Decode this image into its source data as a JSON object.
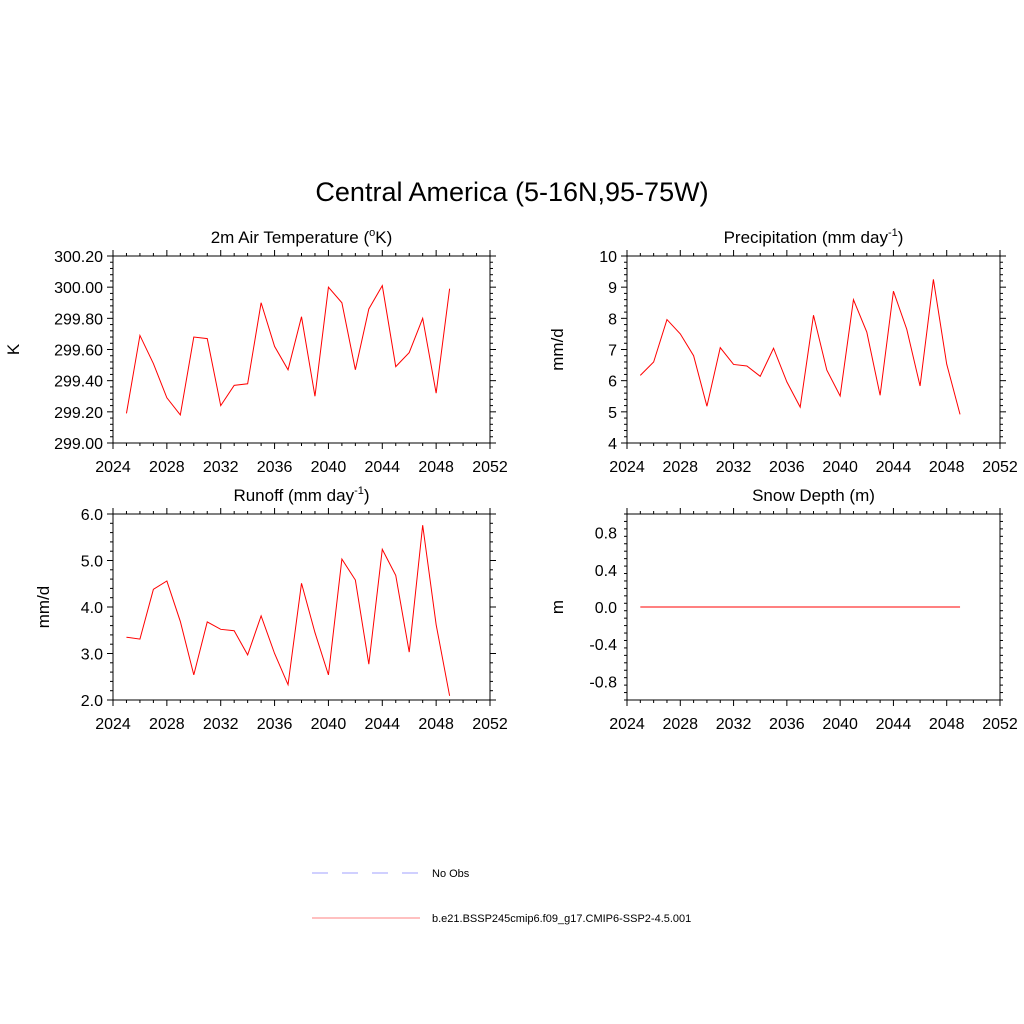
{
  "figure": {
    "title": "Central America (5-16N,95-75W)",
    "legend": [
      {
        "label": "No Obs",
        "color": "#a0a0ff",
        "style": "dashed"
      },
      {
        "label": "b.e21.BSSP245cmip6.f09_g17.CMIP6-SSP2-4.5.001",
        "color": "#ff8080",
        "style": "solid"
      }
    ]
  },
  "chart_data": [
    {
      "type": "line",
      "title": "2m Air Temperature (",
      "title_sup": "o",
      "title_after": "K)",
      "ylabel": "K",
      "xlim": [
        2024,
        2052
      ],
      "ylim": [
        299.0,
        300.2
      ],
      "xticks": [
        2024,
        2028,
        2032,
        2036,
        2040,
        2044,
        2048,
        2052
      ],
      "yticks": [
        299.0,
        299.2,
        299.4,
        299.6,
        299.8,
        300.0,
        300.2
      ],
      "ytick_labels": [
        "299.00",
        "299.20",
        "299.40",
        "299.60",
        "299.80",
        "300.00",
        "300.20"
      ],
      "series": [
        {
          "color": "#ff0000",
          "x": [
            2025,
            2026,
            2027,
            2028,
            2029,
            2030,
            2031,
            2032,
            2033,
            2034,
            2035,
            2036,
            2037,
            2038,
            2039,
            2040,
            2041,
            2042,
            2043,
            2044,
            2045,
            2046,
            2047,
            2048,
            2049
          ],
          "values": [
            299.19,
            299.69,
            299.51,
            299.29,
            299.18,
            299.68,
            299.67,
            299.24,
            299.37,
            299.38,
            299.9,
            299.62,
            299.47,
            299.81,
            299.3,
            300.0,
            299.9,
            299.47,
            299.86,
            300.01,
            299.49,
            299.58,
            299.8,
            299.32,
            299.99
          ]
        }
      ]
    },
    {
      "type": "line",
      "title": "Precipitation (mm day",
      "title_sup": "-1",
      "title_after": ")",
      "ylabel": "mm/d",
      "xlim": [
        2024,
        2052
      ],
      "ylim": [
        4,
        10
      ],
      "xticks": [
        2024,
        2028,
        2032,
        2036,
        2040,
        2044,
        2048,
        2052
      ],
      "yticks": [
        4,
        5,
        6,
        7,
        8,
        9,
        10
      ],
      "ytick_labels": [
        "4",
        "5",
        "6",
        "7",
        "8",
        "9",
        "10"
      ],
      "series": [
        {
          "color": "#ff0000",
          "x": [
            2025,
            2026,
            2027,
            2028,
            2029,
            2030,
            2031,
            2032,
            2033,
            2034,
            2035,
            2036,
            2037,
            2038,
            2039,
            2040,
            2041,
            2042,
            2043,
            2044,
            2045,
            2046,
            2047,
            2048,
            2049
          ],
          "values": [
            6.17,
            6.6,
            7.96,
            7.5,
            6.8,
            5.18,
            7.06,
            6.52,
            6.47,
            6.14,
            7.04,
            5.96,
            5.15,
            8.1,
            6.34,
            5.51,
            8.6,
            7.56,
            5.53,
            8.87,
            7.65,
            5.83,
            9.25,
            6.53,
            4.92
          ]
        }
      ]
    },
    {
      "type": "line",
      "title": "Runoff (mm day",
      "title_sup": "-1",
      "title_after": ")",
      "ylabel": "mm/d",
      "xlim": [
        2024,
        2052
      ],
      "ylim": [
        2.0,
        6.0
      ],
      "xticks": [
        2024,
        2028,
        2032,
        2036,
        2040,
        2044,
        2048,
        2052
      ],
      "yticks": [
        2.0,
        3.0,
        4.0,
        5.0,
        6.0
      ],
      "ytick_labels": [
        "2.0",
        "3.0",
        "4.0",
        "5.0",
        "6.0"
      ],
      "series": [
        {
          "color": "#ff0000",
          "x": [
            2025,
            2026,
            2027,
            2028,
            2029,
            2030,
            2031,
            2032,
            2033,
            2034,
            2035,
            2036,
            2037,
            2038,
            2039,
            2040,
            2041,
            2042,
            2043,
            2044,
            2045,
            2046,
            2047,
            2048,
            2049
          ],
          "values": [
            3.35,
            3.31,
            4.38,
            4.56,
            3.69,
            2.54,
            3.68,
            3.52,
            3.49,
            2.97,
            3.81,
            3.0,
            2.33,
            4.51,
            3.45,
            2.54,
            5.03,
            4.58,
            2.77,
            5.24,
            4.68,
            3.03,
            5.76,
            3.62,
            2.09
          ]
        }
      ]
    },
    {
      "type": "line",
      "title": "Snow Depth (m)",
      "title_sup": "",
      "title_after": "",
      "ylabel": "m",
      "xlim": [
        2024,
        2052
      ],
      "ylim": [
        -1.0,
        1.0
      ],
      "xticks": [
        2024,
        2028,
        2032,
        2036,
        2040,
        2044,
        2048,
        2052
      ],
      "yticks": [
        -0.8,
        -0.4,
        0.0,
        0.4,
        0.8
      ],
      "ytick_labels": [
        "-0.8",
        "-0.4",
        "0.0",
        "0.4",
        "0.8"
      ],
      "series": [
        {
          "color": "#ff0000",
          "x": [
            2025,
            2049
          ],
          "values": [
            0.0,
            0.0
          ]
        }
      ]
    }
  ]
}
